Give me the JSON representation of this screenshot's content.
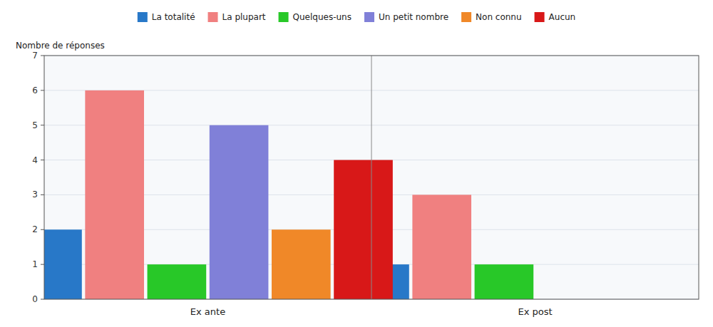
{
  "chart_data": {
    "type": "bar",
    "categories": [
      "Ex ante",
      "Ex post"
    ],
    "series": [
      {
        "name": "La totalité",
        "color": "#2878c8",
        "values": [
          2,
          1
        ]
      },
      {
        "name": "La plupart",
        "color": "#f08080",
        "values": [
          6,
          3
        ]
      },
      {
        "name": "Quelques-uns",
        "color": "#28c828",
        "values": [
          1,
          1
        ]
      },
      {
        "name": "Un petit nombre",
        "color": "#8080d8",
        "values": [
          5,
          0
        ]
      },
      {
        "name": "Non connu",
        "color": "#f08828",
        "values": [
          2,
          0
        ]
      },
      {
        "name": "Aucun",
        "color": "#d81818",
        "values": [
          4,
          0
        ]
      }
    ],
    "y_label": "Nombre de réponses",
    "ylim": [
      0,
      7
    ],
    "yticks": [
      0,
      1,
      2,
      3,
      4,
      5,
      6,
      7
    ],
    "grid": true,
    "legend": "top"
  }
}
